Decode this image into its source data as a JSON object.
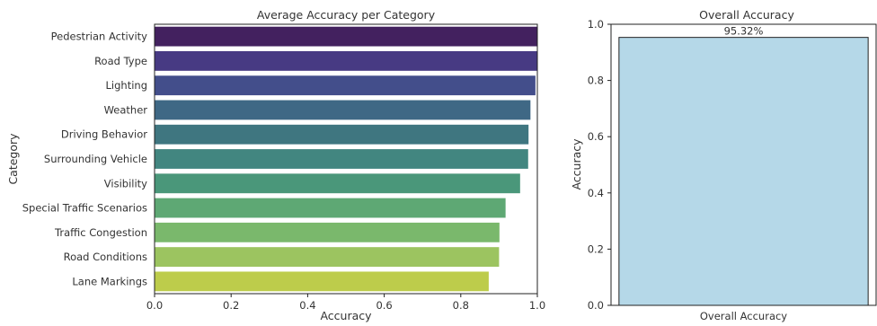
{
  "chart_data": [
    {
      "type": "bar",
      "orientation": "horizontal",
      "title": "Average Accuracy per Category",
      "xlabel": "Accuracy",
      "ylabel": "Category",
      "xlim": [
        0,
        1.0
      ],
      "xticks": [
        "0.0",
        "0.2",
        "0.4",
        "0.6",
        "0.8",
        "1.0"
      ],
      "categories": [
        "Pedestrian Activity",
        "Road Type",
        "Lighting",
        "Weather",
        "Driving Behavior",
        "Surrounding Vehicle",
        "Visibility",
        "Special Traffic Scenarios",
        "Traffic Congestion",
        "Road Conditions",
        "Lane Markings"
      ],
      "values": [
        1.0,
        1.0,
        0.995,
        0.982,
        0.977,
        0.976,
        0.955,
        0.917,
        0.901,
        0.9,
        0.873
      ],
      "colors": [
        "#43215f",
        "#473a83",
        "#434e8b",
        "#3f6885",
        "#3f7680",
        "#428680",
        "#4a977a",
        "#5ea874",
        "#7ab86c",
        "#9cc460",
        "#bdcc4b"
      ],
      "grid": false,
      "legend": "none"
    },
    {
      "type": "bar",
      "title": "Overall Accuracy",
      "xlabel": "",
      "ylabel": "Accuracy",
      "ylim": [
        0,
        1.0
      ],
      "yticks": [
        "0.0",
        "0.2",
        "0.4",
        "0.6",
        "0.8",
        "1.0"
      ],
      "categories": [
        "Overall Accuracy"
      ],
      "values": [
        0.9532
      ],
      "data_labels": [
        "95.32%"
      ],
      "colors": [
        "#b5d8e8"
      ],
      "grid": false,
      "legend": "none"
    }
  ]
}
